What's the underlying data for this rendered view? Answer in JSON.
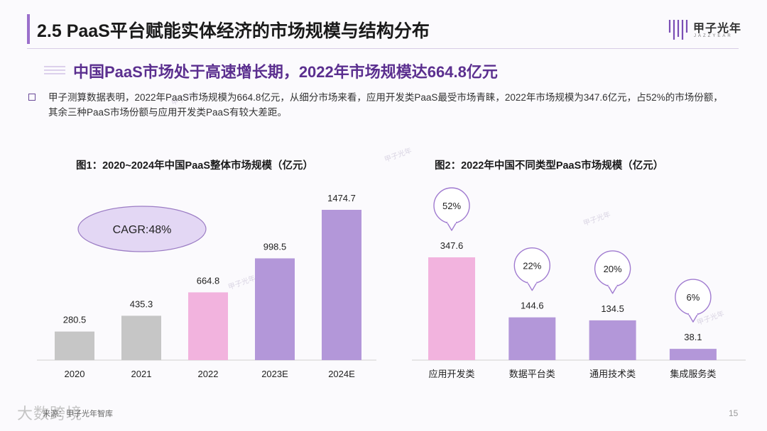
{
  "header": {
    "title": "2.5 PaaS平台赋能实体经济的市场规模与结构分布",
    "brand_cn": "甲子光年",
    "brand_en": "JAZZYEAR"
  },
  "subtitle": "中国PaaS市场处于高速增长期，2022年市场规模达664.8亿元",
  "body_text": "甲子测算数据表明，2022年PaaS市场规模为664.8亿元，从细分市场来看，应用开发类PaaS最受市场青睐，2022年市场规模为347.6亿元，占52%的市场份额，其余三种PaaS市场份额与应用开发类PaaS有较大差距。",
  "colors": {
    "accent": "#9b6fcb",
    "subtitle": "#5b2f8f",
    "gray_bar": "#c6c6c6",
    "pink_bar": "#f2b3de",
    "purple_bar": "#b397d9",
    "cagr_fill": "#e3d7f4",
    "cagr_stroke": "#9b7cc4"
  },
  "chart_data": [
    {
      "type": "bar",
      "title": "图1：2020~2024年中国PaaS整体市场规模（亿元）",
      "categories": [
        "2020",
        "2021",
        "2022",
        "2023E",
        "2024E"
      ],
      "values": [
        280.5,
        435.3,
        664.8,
        998.5,
        1474.7
      ],
      "value_labels": [
        "280.5",
        "435.3",
        "664.8",
        "998.5",
        "1474.7"
      ],
      "bar_colors": [
        "#c6c6c6",
        "#c6c6c6",
        "#f2b3de",
        "#b397d9",
        "#b397d9"
      ],
      "annotation": "CAGR:48%",
      "xlabel": "",
      "ylabel": "",
      "ylim": [
        0,
        1500
      ]
    },
    {
      "type": "bar",
      "title": "图2：2022年中国不同类型PaaS市场规模（亿元）",
      "categories": [
        "应用开发类",
        "数据平台类",
        "通用技术类",
        "集成服务类"
      ],
      "values": [
        347.6,
        144.6,
        134.5,
        38.1
      ],
      "value_labels": [
        "347.6",
        "144.6",
        "134.5",
        "38.1"
      ],
      "shares": [
        "52%",
        "22%",
        "20%",
        "6%"
      ],
      "bar_colors": [
        "#f2b3de",
        "#b397d9",
        "#b397d9",
        "#b397d9"
      ],
      "xlabel": "",
      "ylabel": "",
      "ylim": [
        0,
        1500
      ]
    }
  ],
  "footer": {
    "source": "来源：甲子光年智库",
    "watermark_brand": "大数跨境",
    "page": "15"
  }
}
